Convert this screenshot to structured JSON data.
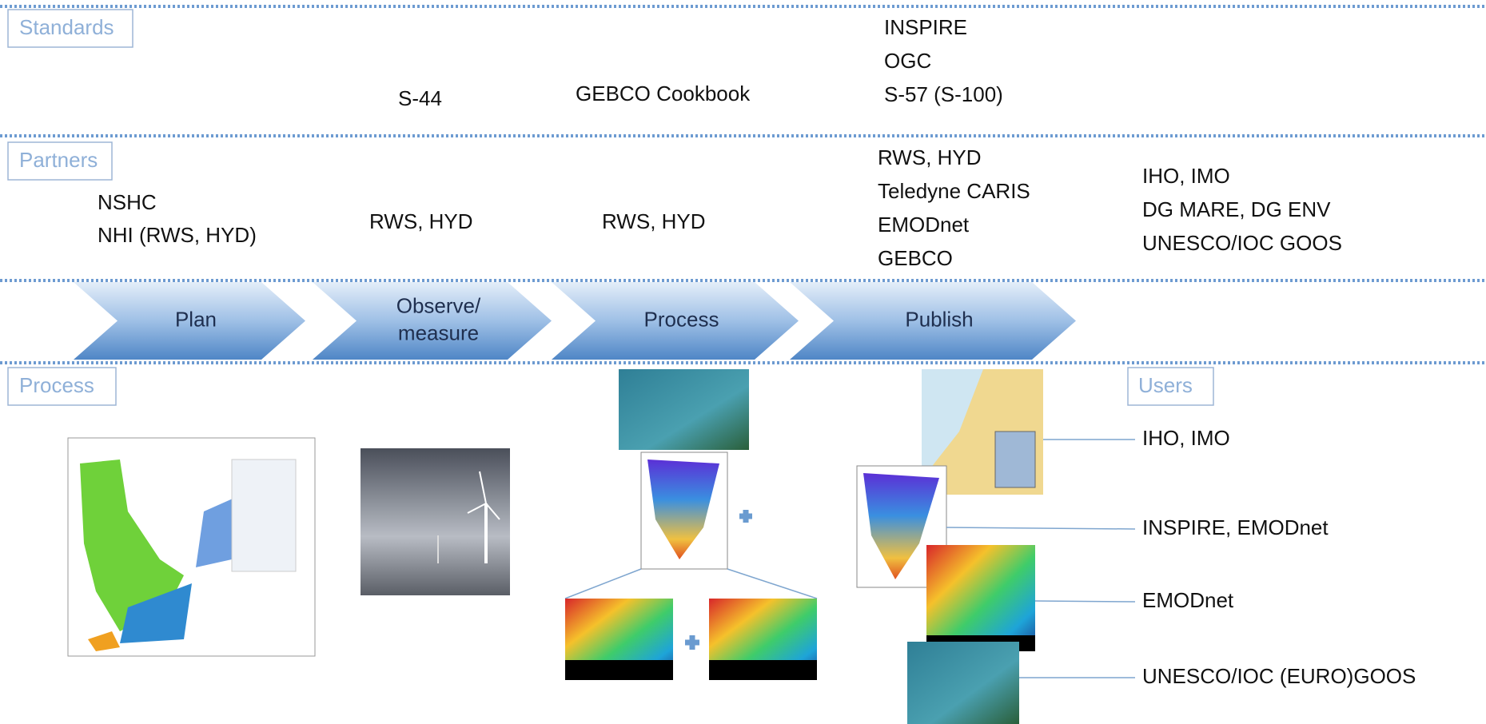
{
  "sections": {
    "standards": "Standards",
    "partners": "Partners",
    "process": "Process",
    "users": "Users"
  },
  "standards": {
    "observe": [
      "S-44"
    ],
    "process": [
      "GEBCO Cookbook"
    ],
    "publish": [
      "INSPIRE",
      "OGC",
      "S-57 (S-100)"
    ]
  },
  "partners": {
    "plan": [
      "NSHC",
      "NHI (RWS, HYD)"
    ],
    "observe": [
      "RWS, HYD"
    ],
    "process": [
      "RWS, HYD"
    ],
    "publish": [
      "RWS, HYD",
      "Teledyne CARIS",
      "EMODnet",
      "GEBCO"
    ],
    "users": [
      "IHO, IMO",
      "DG MARE, DG ENV",
      "UNESCO/IOC GOOS"
    ]
  },
  "steps": [
    [
      "Plan"
    ],
    [
      "Observe/",
      "measure"
    ],
    [
      "Process"
    ],
    [
      "Publish"
    ]
  ],
  "users": [
    "IHO, IMO",
    "INSPIRE, EMODnet",
    "EMODnet",
    "UNESCO/IOC (EURO)GOOS"
  ]
}
